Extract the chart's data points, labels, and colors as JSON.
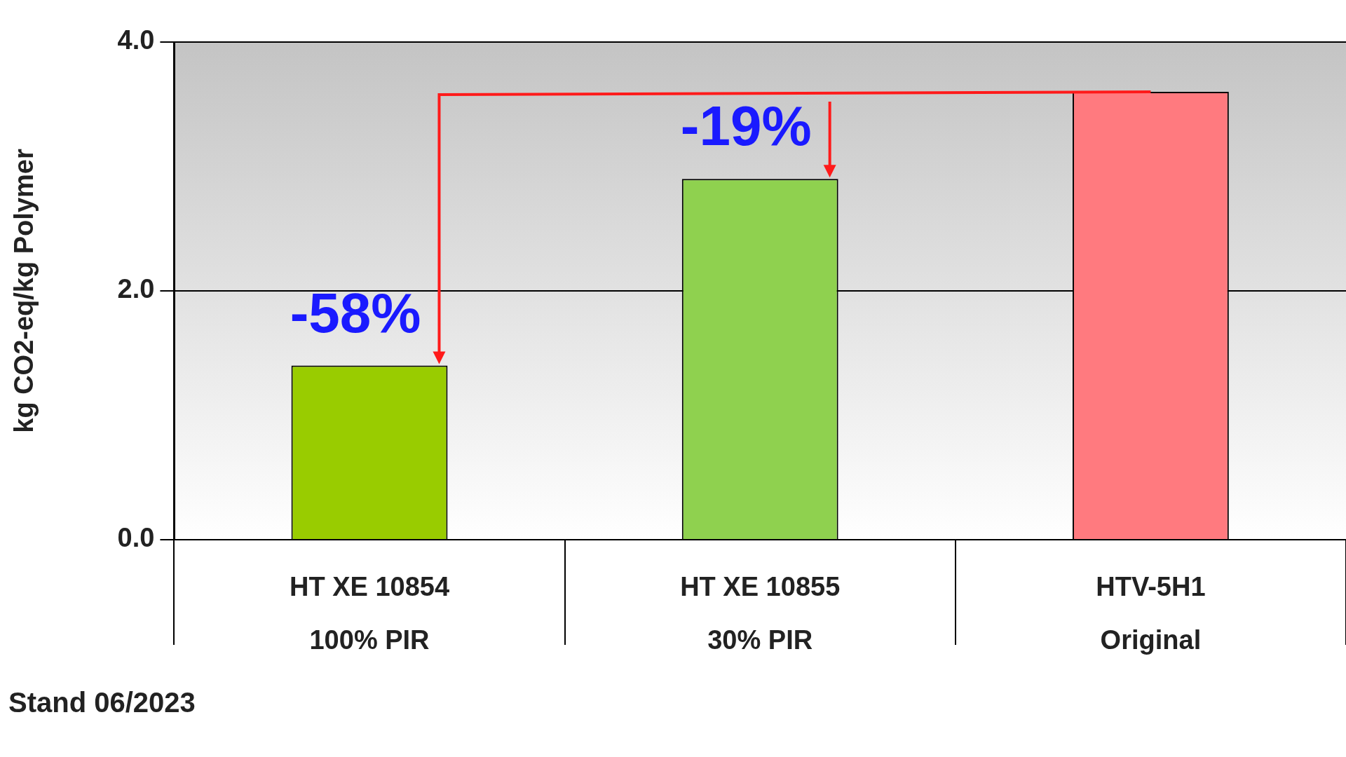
{
  "chart_data": {
    "type": "bar",
    "ylabel": "kg CO2-eq/kg Polymer",
    "categories": [
      "HT XE 10854\n100% PIR",
      "HT XE 10855\n30% PIR",
      "HTV-5H1\nOriginal"
    ],
    "values": [
      1.4,
      2.9,
      3.6
    ],
    "colors": [
      "#99cc00",
      "#8fd14f",
      "#ff7a7f"
    ],
    "ylim": [
      0,
      4
    ],
    "yticks": [
      {
        "value": 0,
        "label": "0.0"
      },
      {
        "value": 2,
        "label": "2.0"
      },
      {
        "value": 4,
        "label": "4.0"
      }
    ],
    "grid": "y",
    "legend": false,
    "annotations": [
      {
        "text": "-58%",
        "x": "HT XE 10854\n100% PIR",
        "y": 1.4
      },
      {
        "text": "-19%",
        "x": "HT XE 10855\n30% PIR",
        "y": 2.9
      },
      "Stand 06/2023"
    ]
  }
}
